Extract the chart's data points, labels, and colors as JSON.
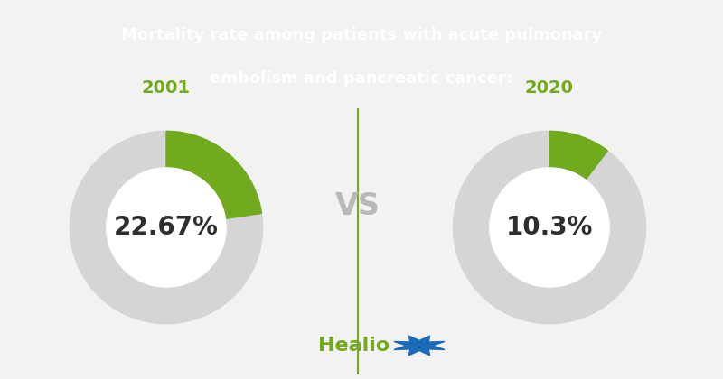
{
  "title_line1": "Mortality rate among patients with acute pulmonary",
  "title_line2": "embolism and pancreatic cancer:",
  "title_bg_color": "#6a9a1f",
  "title_text_color": "#ffffff",
  "bg_color": "#f2f2f2",
  "year1": "2001",
  "value1": 22.67,
  "label1": "22.67%",
  "year2": "2020",
  "value2": 10.3,
  "label2": "10.3%",
  "green_color": "#72aa1e",
  "gray_color": "#d5d5d5",
  "vs_color": "#b8b8b8",
  "text_color": "#2e2e2e",
  "year_color": "#72aa1e",
  "healio_color": "#72aa1e",
  "healio_star_color": "#1a6ab5",
  "divider_color": "#72aa1e"
}
